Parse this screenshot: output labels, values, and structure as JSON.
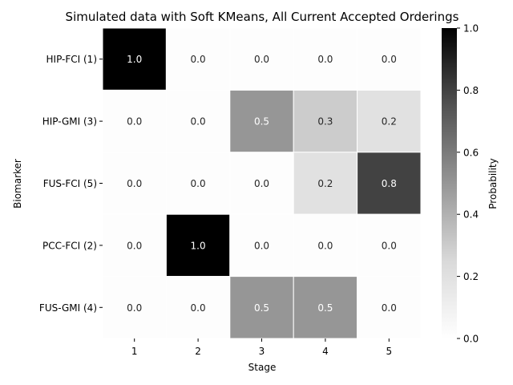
{
  "chart_data": {
    "type": "heatmap",
    "title": "Simulated data with Soft KMeans, All Current Accepted Orderings",
    "xlabel": "Stage",
    "ylabel": "Biomarker",
    "x_categories": [
      "1",
      "2",
      "3",
      "4",
      "5"
    ],
    "y_categories": [
      "HIP-FCI (1)",
      "HIP-GMI (3)",
      "FUS-FCI (5)",
      "PCC-FCI (2)",
      "FUS-GMI (4)"
    ],
    "values": [
      [
        1.0,
        0.0,
        0.0,
        0.0,
        0.0
      ],
      [
        0.0,
        0.0,
        0.5,
        0.3,
        0.2
      ],
      [
        0.0,
        0.0,
        0.0,
        0.2,
        0.8
      ],
      [
        0.0,
        1.0,
        0.0,
        0.0,
        0.0
      ],
      [
        0.0,
        0.0,
        0.5,
        0.5,
        0.0
      ]
    ],
    "value_labels": [
      [
        "1.0",
        "0.0",
        "0.0",
        "0.0",
        "0.0"
      ],
      [
        "0.0",
        "0.0",
        "0.5",
        "0.3",
        "0.2"
      ],
      [
        "0.0",
        "0.0",
        "0.0",
        "0.2",
        "0.8"
      ],
      [
        "0.0",
        "1.0",
        "0.0",
        "0.0",
        "0.0"
      ],
      [
        "0.0",
        "0.0",
        "0.5",
        "0.5",
        "0.0"
      ]
    ],
    "colorbar": {
      "label": "Probability",
      "range": [
        0,
        1
      ],
      "ticks": [
        "0.0",
        "0.2",
        "0.4",
        "0.6",
        "0.8",
        "1.0"
      ],
      "colormap": "Greys"
    }
  }
}
